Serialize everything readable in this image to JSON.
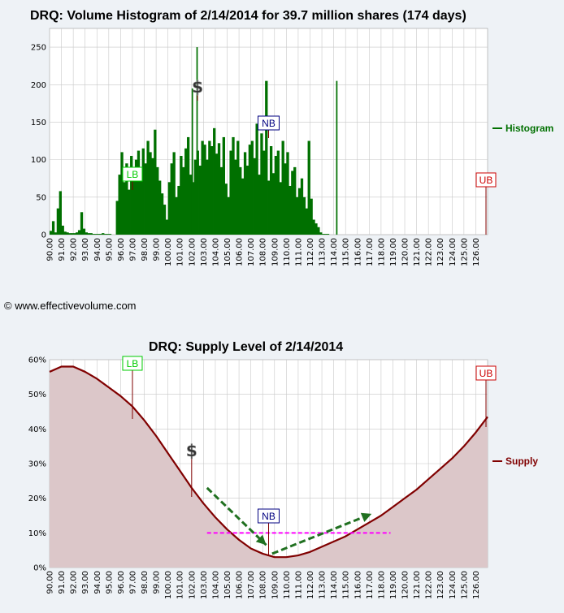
{
  "credit": "© www.effectivevolume.com",
  "chart_data": [
    {
      "type": "bar",
      "title": "DRQ: Volume Histogram of 2/14/2014 for 39.7 million shares (174 days)",
      "xlabel": "",
      "ylabel": "",
      "xlim": [
        90,
        127
      ],
      "ylim": [
        0,
        275
      ],
      "yticks": [
        "0",
        "50",
        "100",
        "150",
        "200",
        "250"
      ],
      "yticks_values": [
        0,
        50,
        100,
        150,
        200,
        250
      ],
      "xticks": [
        "90.00",
        "91.00",
        "92.00",
        "93.00",
        "94.00",
        "95.00",
        "96.00",
        "97.00",
        "98.00",
        "99.00",
        "100.00",
        "101.00",
        "102.00",
        "103.00",
        "104.00",
        "105.00",
        "106.00",
        "107.00",
        "108.00",
        "109.00",
        "110.00",
        "111.00",
        "112.00",
        "113.00",
        "114.00",
        "115.00",
        "116.00",
        "117.00",
        "118.00",
        "119.00",
        "120.00",
        "121.00",
        "122.00",
        "123.00",
        "124.00",
        "125.00",
        "126.00"
      ],
      "series": [
        {
          "name": "Histogram",
          "color": "#007000",
          "x_start": 90.0,
          "x_step": 0.2,
          "values": [
            5,
            18,
            3,
            35,
            58,
            12,
            4,
            3,
            2,
            2,
            2,
            3,
            6,
            30,
            8,
            3,
            2,
            2,
            1,
            1,
            1,
            1,
            2,
            1,
            1,
            1,
            0,
            0,
            45,
            80,
            110,
            70,
            95,
            60,
            105,
            75,
            100,
            112,
            88,
            115,
            95,
            125,
            110,
            102,
            140,
            90,
            72,
            55,
            40,
            20,
            70,
            95,
            110,
            50,
            65,
            105,
            90,
            115,
            130,
            80,
            70,
            100,
            112,
            92,
            125,
            120,
            100,
            125,
            118,
            142,
            108,
            122,
            90,
            130,
            68,
            50,
            112,
            130,
            100,
            125,
            90,
            75,
            110,
            92,
            120,
            125,
            102,
            148,
            80,
            135,
            112,
            205,
            72,
            118,
            82,
            105,
            112,
            70,
            125,
            95,
            110,
            65,
            85,
            90,
            50,
            62,
            75,
            50,
            35,
            125,
            48,
            20,
            15,
            10,
            3,
            1,
            1,
            1,
            0,
            0,
            0,
            0,
            0,
            0,
            0,
            0,
            0,
            0,
            0,
            0,
            0,
            0,
            0,
            0,
            0,
            0,
            0,
            0,
            0,
            0,
            0,
            0,
            0,
            0,
            0,
            0,
            0,
            0,
            0,
            0,
            0,
            0,
            0,
            0,
            0,
            0,
            0,
            0,
            0,
            0,
            0,
            0,
            0,
            0,
            0,
            0,
            0,
            0,
            0,
            0,
            0,
            0,
            0,
            0,
            0,
            0,
            0,
            0,
            0,
            0,
            0,
            0,
            0,
            0,
            0,
            0
          ]
        }
      ],
      "peaks": [
        {
          "x": 102.4,
          "value": 250
        },
        {
          "x": 102.0,
          "value": 195
        },
        {
          "x": 114.2,
          "value": 205
        }
      ],
      "markers": [
        {
          "label": "LB",
          "x": 97.0,
          "color": "#00cc00"
        },
        {
          "label": "NB",
          "x": 108.5,
          "color": "#000080"
        },
        {
          "label": "UB",
          "x": 127.0,
          "color": "#cc0000"
        },
        {
          "label": "$",
          "x": 102.5,
          "color": "#333333"
        }
      ],
      "legend": {
        "label": "Histogram",
        "position": "right"
      },
      "grid": true
    },
    {
      "type": "area",
      "title": "DRQ: Supply Level of 2/14/2014",
      "xlabel": "",
      "ylabel": "",
      "xlim": [
        90,
        127
      ],
      "ylim": [
        0,
        60
      ],
      "yticks": [
        "0%",
        "10%",
        "20%",
        "30%",
        "40%",
        "50%",
        "60%"
      ],
      "yticks_values": [
        0,
        10,
        20,
        30,
        40,
        50,
        60
      ],
      "xticks": [
        "90.00",
        "91.00",
        "92.00",
        "93.00",
        "94.00",
        "95.00",
        "96.00",
        "97.00",
        "98.00",
        "99.00",
        "100.00",
        "101.00",
        "102.00",
        "103.00",
        "104.00",
        "105.00",
        "106.00",
        "107.00",
        "108.00",
        "109.00",
        "110.00",
        "111.00",
        "112.00",
        "113.00",
        "114.00",
        "115.00",
        "116.00",
        "117.00",
        "118.00",
        "119.00",
        "120.00",
        "121.00",
        "122.00",
        "123.00",
        "124.00",
        "125.00",
        "126.00"
      ],
      "series": [
        {
          "name": "Supply",
          "color": "#800000",
          "fill": "#dcc7c9",
          "x": [
            90,
            91,
            92,
            93,
            94,
            95,
            96,
            97,
            98,
            99,
            100,
            101,
            102,
            103,
            104,
            105,
            106,
            107,
            108,
            109,
            110,
            111,
            112,
            113,
            114,
            115,
            116,
            117,
            118,
            119,
            120,
            121,
            122,
            123,
            124,
            125,
            126,
            127
          ],
          "values": [
            56.5,
            58.0,
            58.0,
            56.5,
            54.5,
            52.0,
            49.5,
            46.5,
            42.5,
            38.0,
            33.0,
            28.0,
            23.0,
            18.5,
            14.5,
            11.0,
            8.0,
            5.5,
            4.0,
            3.0,
            3.0,
            3.5,
            4.5,
            6.0,
            7.5,
            9.0,
            11.0,
            13.0,
            15.0,
            17.5,
            20.0,
            22.5,
            25.5,
            28.5,
            31.5,
            35.0,
            39.0,
            43.5
          ]
        }
      ],
      "reference_line": {
        "y": 10,
        "x_range": [
          103.3,
          118.8
        ],
        "color": "#ff00ff"
      },
      "arrows": [
        {
          "from": [
            103.3,
            23
          ],
          "to": [
            108.3,
            6.5
          ],
          "color": "#207020"
        },
        {
          "from": [
            108.8,
            4
          ],
          "to": [
            117.2,
            15.5
          ],
          "color": "#207020"
        }
      ],
      "markers": [
        {
          "label": "LB",
          "x": 97.0,
          "color": "#00cc00"
        },
        {
          "label": "NB",
          "x": 108.5,
          "color": "#000080"
        },
        {
          "label": "UB",
          "x": 127.0,
          "color": "#cc0000"
        },
        {
          "label": "$",
          "x": 102.0,
          "color": "#333333"
        }
      ],
      "legend": {
        "label": "Supply",
        "position": "right"
      },
      "grid": true
    }
  ]
}
